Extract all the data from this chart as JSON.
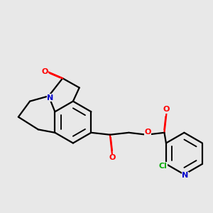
{
  "background_color": "#e8e8e8",
  "bond_color": "#000000",
  "atom_colors": {
    "O": "#ff0000",
    "N": "#0000cc",
    "Cl": "#00aa00"
  },
  "figsize": [
    3.0,
    3.0
  ],
  "dpi": 100
}
